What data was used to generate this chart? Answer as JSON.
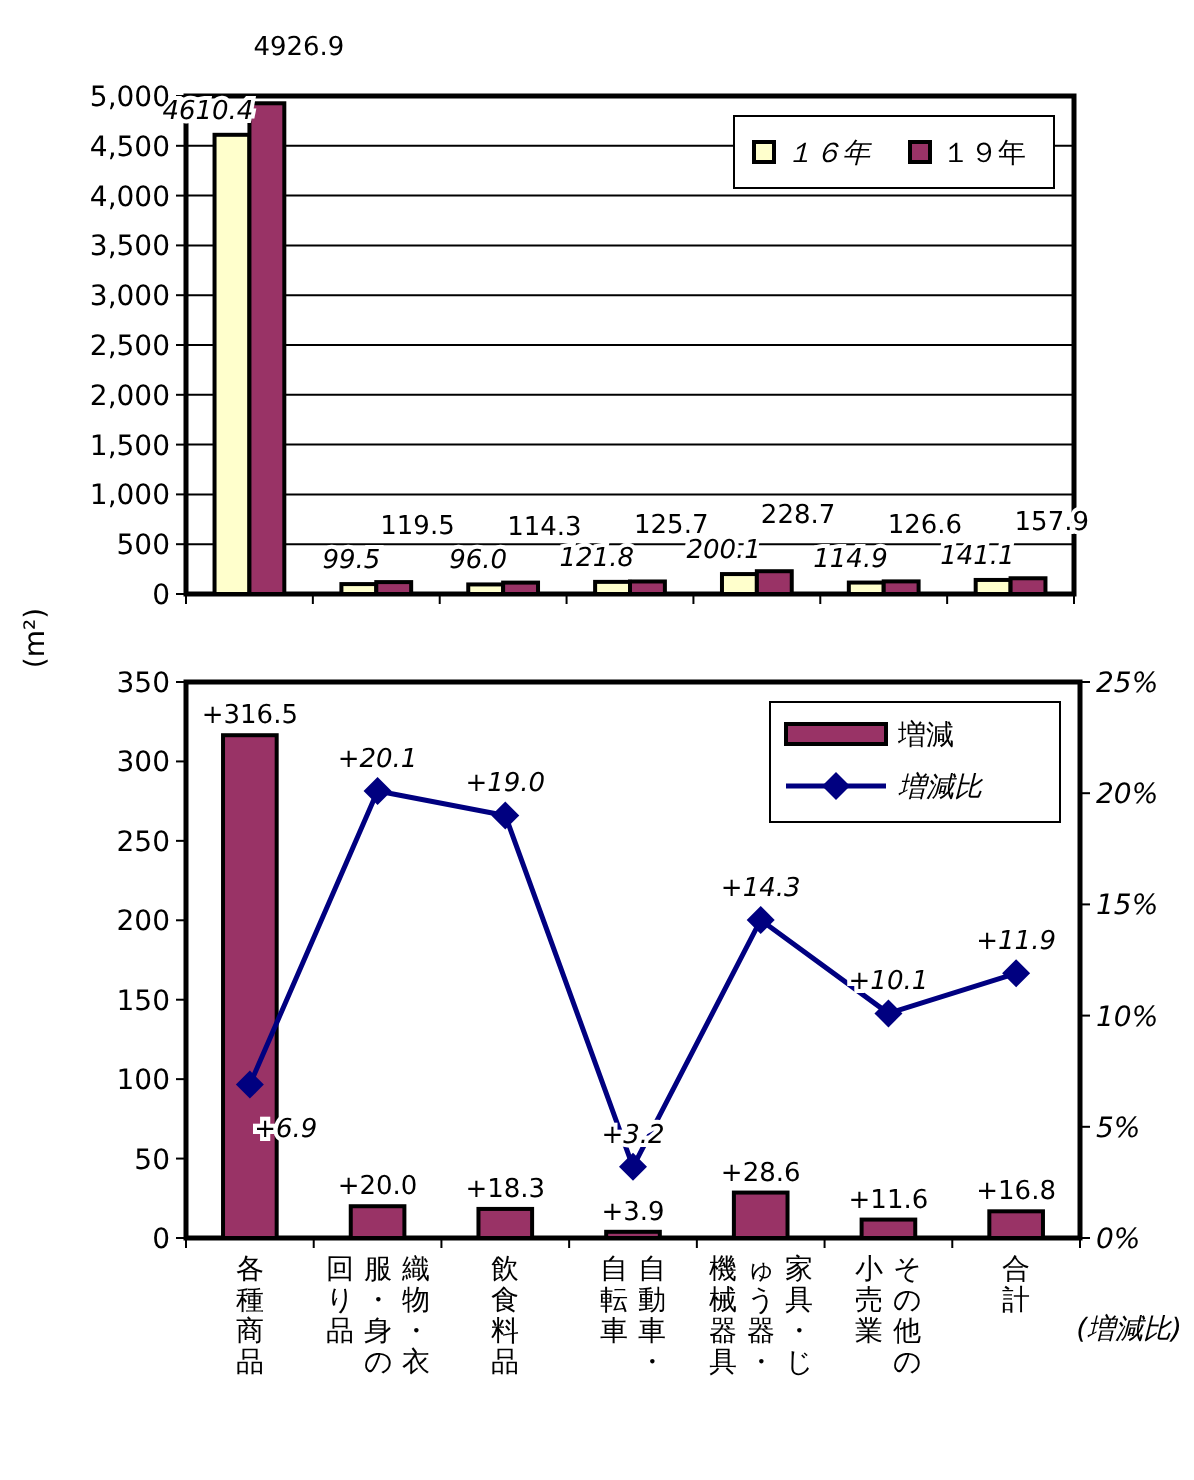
{
  "chart_data": [
    {
      "type": "bar",
      "ylabel": "(m²)",
      "categories": [
        null,
        null,
        null,
        null,
        null,
        null,
        null
      ],
      "series": [
        {
          "name": "１６年",
          "color": "#ffffcc",
          "values": [
            4610.4,
            99.5,
            96.0,
            121.8,
            200.1,
            114.9,
            141.1
          ],
          "value_labels": [
            "4610.4",
            "99.5",
            "96.0",
            "121.8",
            "200.1",
            "114.9",
            "141.1"
          ]
        },
        {
          "name": "１９年",
          "color": "#993366",
          "values": [
            4926.9,
            119.5,
            114.3,
            125.7,
            228.7,
            126.6,
            157.9
          ],
          "value_labels": [
            "4926.9",
            "119.5",
            "114.3",
            "125.7",
            "228.7",
            "126.6",
            "157.9"
          ]
        }
      ],
      "ylim": [
        0,
        5000
      ],
      "yticks": [
        0,
        500,
        {
          "value": 1000,
          "label": "1,000"
        },
        {
          "value": 1500,
          "label": "1,500"
        },
        {
          "value": 2000,
          "label": "2,000"
        },
        {
          "value": 2500,
          "label": "2,500"
        },
        {
          "value": 3000,
          "label": "3,000"
        },
        {
          "value": 3500,
          "label": "3,500"
        },
        {
          "value": 4000,
          "label": "4,000"
        },
        {
          "value": 4500,
          "label": "4,500"
        },
        {
          "value": 5000,
          "label": "5,000"
        }
      ],
      "grid": "y",
      "legend": "top right"
    },
    {
      "type": "bar",
      "categories": [
        "各種商品",
        "織物・衣服・身の回り品",
        "飲食料品",
        "自動車・自転車",
        "家具・じゅう器・機械器具",
        "その他の小売業",
        "合計"
      ],
      "series": [
        {
          "name": "増減",
          "type": "bar",
          "color": "#993366",
          "values": [
            316.5,
            20.0,
            18.3,
            3.9,
            28.6,
            11.6,
            16.8
          ],
          "value_labels": [
            "+316.5",
            "+20.0",
            "+18.3",
            "+3.9",
            "+28.6",
            "+11.6",
            "+16.8"
          ]
        },
        {
          "name": "増減比",
          "type": "line",
          "axis": "y2",
          "color": "#000080",
          "marker": "diamond",
          "values": [
            6.9,
            20.1,
            19.0,
            3.2,
            14.3,
            10.1,
            11.9
          ],
          "value_labels": [
            "+6.9",
            "+20.1",
            "+19.0",
            "+3.2",
            "+14.3",
            "+10.1",
            "+11.9"
          ]
        }
      ],
      "ylim": [
        0,
        350
      ],
      "yticks": [
        0,
        50,
        100,
        150,
        200,
        250,
        300,
        350
      ],
      "y2lim": [
        0,
        25
      ],
      "y2ticks": [
        {
          "value": 0,
          "label": "0%"
        },
        {
          "value": 5,
          "label": "5%"
        },
        {
          "value": 10,
          "label": "10%"
        },
        {
          "value": 15,
          "label": "15%"
        },
        {
          "value": 20,
          "label": "20%"
        },
        {
          "value": 25,
          "label": "25%"
        }
      ],
      "legend": "top right",
      "annotations": [
        "(増減比)"
      ]
    }
  ]
}
